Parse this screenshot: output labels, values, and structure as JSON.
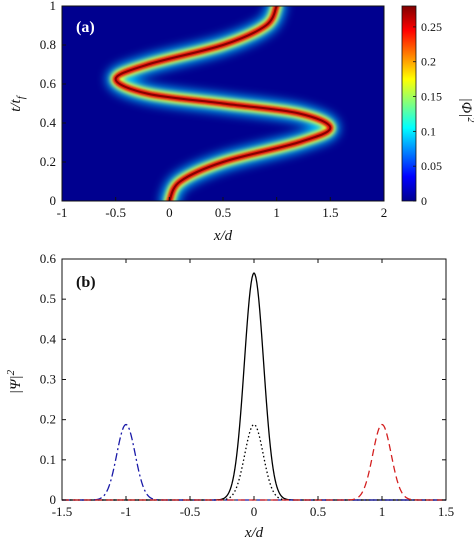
{
  "chart_data": [
    {
      "panel": "(a)",
      "type": "heatmap",
      "xlabel": "x/d",
      "ylabel": "t/t_f",
      "xlim": [
        -1,
        2
      ],
      "ylim": [
        0,
        1
      ],
      "xticks": [
        "-1",
        "-0.5",
        "0",
        "0.5",
        "1",
        "1.5",
        "2"
      ],
      "yticks": [
        "0",
        "0.2",
        "0.4",
        "0.6",
        "0.8",
        "1"
      ],
      "colorbar": {
        "label": "|Φ|²",
        "range": [
          0,
          0.28
        ],
        "ticks": [
          "0",
          "0.05",
          "0.1",
          "0.15",
          "0.2",
          "0.25"
        ],
        "colormap": "jet"
      },
      "trajectory": {
        "t": [
          0,
          0.1,
          0.2,
          0.3,
          0.375,
          0.45,
          0.5,
          0.55,
          0.625,
          0.7,
          0.8,
          0.9,
          1
        ],
        "x": [
          0,
          0.1,
          0.5,
          1.2,
          1.5,
          1.2,
          0.5,
          -0.2,
          -0.5,
          -0.2,
          0.5,
          0.9,
          1.0
        ]
      },
      "peak_value": 0.27,
      "background": "#00008f"
    },
    {
      "panel": "(b)",
      "type": "line",
      "xlabel": "x/d",
      "ylabel": "|Ψ|²",
      "xlim": [
        -1.5,
        1.5
      ],
      "ylim": [
        0,
        0.6
      ],
      "xticks": [
        "-1.5",
        "-1",
        "-0.5",
        "0",
        "0.5",
        "1",
        "1.5"
      ],
      "yticks": [
        "0",
        "0.1",
        "0.2",
        "0.3",
        "0.4",
        "0.5",
        "0.6"
      ],
      "series": [
        {
          "center": 0,
          "peak": 0.565,
          "sigma": 0.075,
          "color": "#000000",
          "style": "solid"
        },
        {
          "center": 0,
          "peak": 0.188,
          "sigma": 0.072,
          "color": "#000000",
          "style": "dotted"
        },
        {
          "center": -1,
          "peak": 0.188,
          "sigma": 0.072,
          "color": "#1a1aa8",
          "style": "dashdot"
        },
        {
          "center": 1,
          "peak": 0.188,
          "sigma": 0.072,
          "color": "#d42020",
          "style": "dashed"
        }
      ]
    }
  ]
}
